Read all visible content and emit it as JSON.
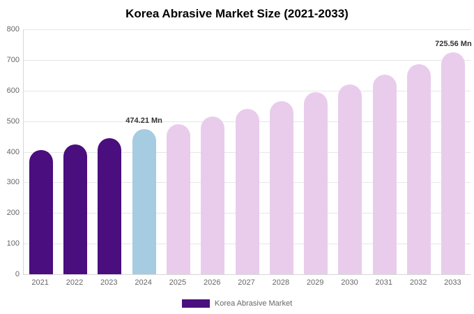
{
  "title": "Korea Abrasive Market Size (2021-2033)",
  "legend": {
    "label": "Korea Abrasive Market",
    "swatch_color": "#4a0e7f"
  },
  "colors": {
    "historical_bar": "#4a0e7f",
    "current_year_bar": "#a6cce2",
    "forecast_bar": "#e9ccec",
    "gridline": "#e6e6e6",
    "axis_line": "#d6d6d6",
    "tick_text": "#666666"
  },
  "chart_data": {
    "type": "bar",
    "title": "Korea Abrasive Market Size (2021-2033)",
    "xlabel": "",
    "ylabel": "",
    "unit": "Mn",
    "categories": [
      "2021",
      "2022",
      "2023",
      "2024",
      "2025",
      "2026",
      "2027",
      "2028",
      "2029",
      "2030",
      "2031",
      "2032",
      "2033"
    ],
    "values": [
      405,
      424,
      445,
      474.21,
      491,
      516,
      540,
      565,
      595,
      621,
      651,
      686,
      725.56
    ],
    "bar_colors": [
      "#4a0e7f",
      "#4a0e7f",
      "#4a0e7f",
      "#a6cce2",
      "#e9ccec",
      "#e9ccec",
      "#e9ccec",
      "#e9ccec",
      "#e9ccec",
      "#e9ccec",
      "#e9ccec",
      "#e9ccec",
      "#e9ccec"
    ],
    "ylim": [
      0,
      800
    ],
    "ytick_step": 100,
    "grid": true,
    "legend_position": "bottom",
    "annotations": [
      {
        "index": 3,
        "text": "474.21 Mn"
      },
      {
        "index": 12,
        "text": "725.56 Mn"
      }
    ]
  }
}
